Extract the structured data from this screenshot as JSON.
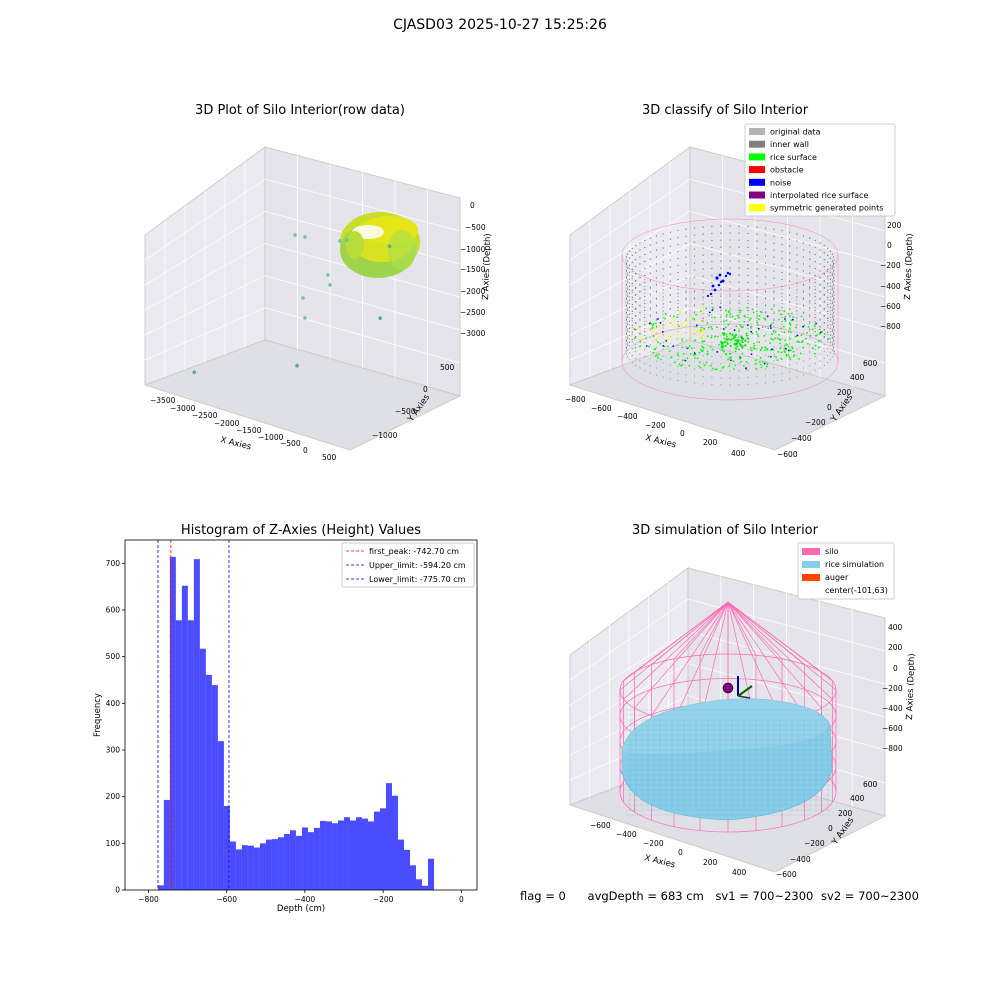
{
  "figure": {
    "suptitle": "CJASD03 2025-10-27 15:25:26",
    "footer": {
      "flag": "flag = 0",
      "avg_depth": "avgDepth = 683 cm",
      "sv1": "sv1 = 700~2300",
      "sv2": "sv2 = 700~2300"
    }
  },
  "chart_data": [
    {
      "type": "scatter3d",
      "title": "3D Plot of Silo Interior(row data)",
      "xlabel": "X Axies",
      "ylabel": "Y Axies",
      "zlabel": "Z Axies (Depth)",
      "x_ticks": [
        "−3500",
        "−3000",
        "−2500",
        "−2000",
        "−1500",
        "−1000",
        "−500",
        "0",
        "500"
      ],
      "y_ticks": [
        "−1000",
        "−500",
        "0",
        "500"
      ],
      "z_ticks": [
        "0",
        "−500",
        "−1000",
        "−1500",
        "−2000",
        "−2500",
        "−3000"
      ],
      "xlim": [
        -3700,
        600
      ],
      "ylim": [
        -1200,
        700
      ],
      "zlim": [
        -3300,
        100
      ],
      "colormap": "viridis-yellow",
      "outlier_points": [
        {
          "x": -3600,
          "y": -600,
          "z": -3100
        },
        {
          "x": -2100,
          "y": 0,
          "z": -3000
        },
        {
          "x": -700,
          "y": 500,
          "z": -600
        },
        {
          "x": -650,
          "y": 300,
          "z": -1900
        }
      ]
    },
    {
      "type": "scatter3d",
      "title": "3D classify of Silo Interior",
      "xlabel": "X Axies",
      "ylabel": "Y Axies",
      "zlabel": "Z Axies (Depth)",
      "x_ticks": [
        "−800",
        "−600",
        "−400",
        "−200",
        "0",
        "200",
        "400"
      ],
      "y_ticks": [
        "−600",
        "−400",
        "−200",
        "0",
        "200",
        "400",
        "600"
      ],
      "z_ticks": [
        "200",
        "0",
        "−200",
        "−400",
        "−600",
        "−800"
      ],
      "legend_position": "top-right",
      "legend": [
        {
          "label": "original data",
          "color": "#b3b3b3"
        },
        {
          "label": "inner wall",
          "color": "#808080"
        },
        {
          "label": "rice surface",
          "color": "#00ff00"
        },
        {
          "label": "obstacle",
          "color": "#ff0000"
        },
        {
          "label": "noise",
          "color": "#0000ff"
        },
        {
          "label": "interpolated rice surface",
          "color": "#800080"
        },
        {
          "label": "symmetric generated points",
          "color": "#ffff00"
        }
      ]
    },
    {
      "type": "bar",
      "title": "Histogram of Z-Axies (Height) Values",
      "xlabel": "Depth (cm)",
      "ylabel": "Frequency",
      "xlim": [
        -860,
        40
      ],
      "ylim": [
        0,
        750
      ],
      "x_ticks": [
        -800,
        -600,
        -400,
        -200,
        0
      ],
      "x_tick_labels": [
        "−800",
        "−600",
        "−400",
        "−200",
        "0"
      ],
      "y_ticks": [
        0,
        100,
        200,
        300,
        400,
        500,
        600,
        700
      ],
      "y_tick_labels": [
        "0",
        "100",
        "200",
        "300",
        "400",
        "500",
        "600",
        "700"
      ],
      "bar_color": "#0000ff",
      "bin_start": -776,
      "bin_width": 15.35,
      "values": [
        10,
        193,
        714,
        578,
        652,
        578,
        709,
        517,
        461,
        439,
        319,
        180,
        104,
        87,
        96,
        95,
        91,
        100,
        108,
        109,
        113,
        120,
        128,
        116,
        134,
        124,
        133,
        148,
        147,
        143,
        149,
        156,
        149,
        156,
        153,
        147,
        168,
        175,
        229,
        202,
        108,
        86,
        53,
        23,
        9,
        67
      ],
      "ref_lines": [
        {
          "label": "first_peak: -742.70 cm",
          "x": -742.7,
          "color": "#ff0000"
        },
        {
          "label": "Upper_limit: -594.20 cm",
          "x": -594.2,
          "color": "#0000ff"
        },
        {
          "label": "Lower_limit: -775.70 cm",
          "x": -775.7,
          "color": "#0000ff"
        }
      ],
      "legend_position": "top-right"
    },
    {
      "type": "surface3d",
      "title": "3D simulation of Silo Interior",
      "xlabel": "X Axies",
      "ylabel": "Y Axies",
      "zlabel": "Z Axies (Depth)",
      "x_ticks": [
        "−600",
        "−400",
        "−200",
        "0",
        "200",
        "400"
      ],
      "y_ticks": [
        "−600",
        "−400",
        "−200",
        "0",
        "200",
        "400",
        "600"
      ],
      "z_ticks": [
        "400",
        "200",
        "0",
        "−200",
        "−400",
        "−600",
        "−800"
      ],
      "legend_position": "top-right",
      "legend": [
        {
          "label": "silo",
          "color": "#ff69b4"
        },
        {
          "label": "rice simulation",
          "color": "#87ceeb"
        },
        {
          "label": "auger",
          "color": "#ff4500"
        },
        {
          "label": "center(-101,63)",
          "color": "none"
        }
      ]
    }
  ]
}
